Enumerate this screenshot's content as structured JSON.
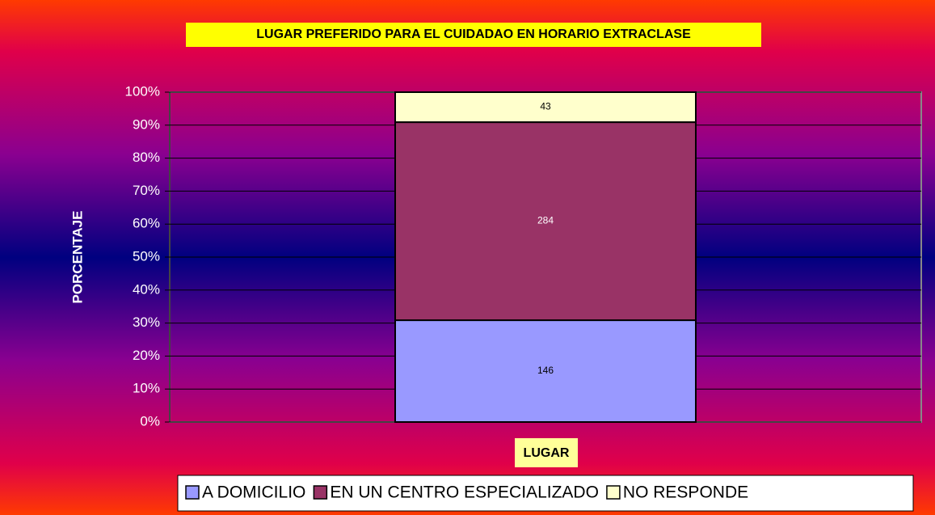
{
  "chart_data": {
    "type": "bar",
    "stacked": "percent",
    "title": "LUGAR PREFERIDO PARA EL CUIDADAO EN HORARIO EXTRACLASE",
    "x_label": "LUGAR",
    "y_label": "PORCENTAJE",
    "categories": [
      null
    ],
    "series": [
      {
        "name": "A DOMICILIO",
        "color": "#9999ff",
        "values": [
          146
        ]
      },
      {
        "name": "EN UN CENTRO ESPECIALIZADO",
        "color": "#993366",
        "values": [
          284
        ]
      },
      {
        "name": "NO RESPONDE",
        "color": "#ffffcc",
        "values": [
          43
        ]
      }
    ],
    "ylim": [
      0,
      100
    ],
    "yticks": [
      {
        "value": 0,
        "label": "0%"
      },
      {
        "value": 10,
        "label": "10%"
      },
      {
        "value": 20,
        "label": "20%"
      },
      {
        "value": 30,
        "label": "30%"
      },
      {
        "value": 40,
        "label": "40%"
      },
      {
        "value": 50,
        "label": "50%"
      },
      {
        "value": 60,
        "label": "60%"
      },
      {
        "value": 70,
        "label": "70%"
      },
      {
        "value": 80,
        "label": "80%"
      },
      {
        "value": 90,
        "label": "90%"
      },
      {
        "value": 100,
        "label": "100%"
      }
    ],
    "grid": true,
    "legend": "bottom"
  }
}
